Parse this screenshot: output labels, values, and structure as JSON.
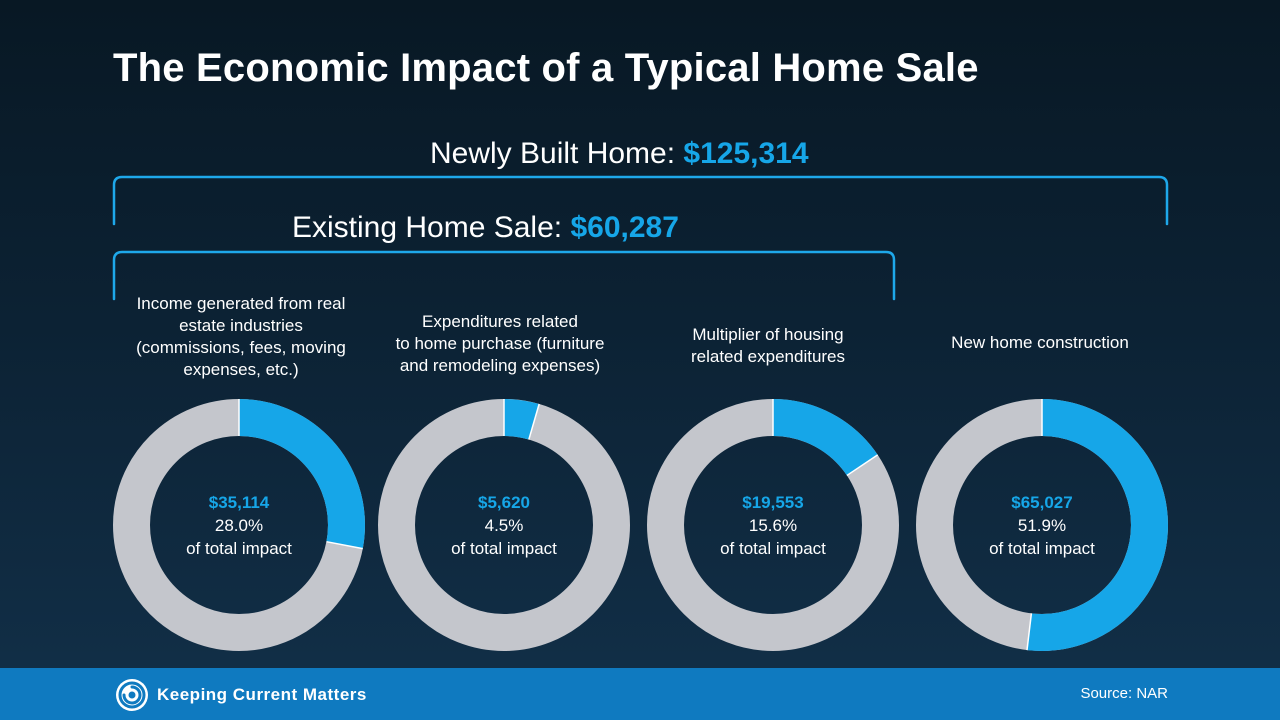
{
  "title": "The Economic Impact of a Typical Home Sale",
  "newly_built": {
    "label": "Newly Built Home: ",
    "amount": "$125,314"
  },
  "existing_sale": {
    "label": "Existing Home Sale: ",
    "amount": "$60,287"
  },
  "colors": {
    "accent": "#16a6e8",
    "ring_gray": "#c4c6cc",
    "footer": "#0f7ac0"
  },
  "chart_data": [
    {
      "type": "pie",
      "label_lines": [
        "Income generated from real",
        "estate industries",
        "(commissions, fees, moving",
        "expenses, etc.)"
      ],
      "value": "$35,114",
      "percent_text": "28.0%",
      "caption": "of total impact",
      "fraction": 0.28
    },
    {
      "type": "pie",
      "label_lines": [
        "Expenditures related",
        "to home purchase (furniture",
        "and remodeling expenses)"
      ],
      "value": "$5,620",
      "percent_text": "4.5%",
      "caption": "of total impact",
      "fraction": 0.045
    },
    {
      "type": "pie",
      "label_lines": [
        "Multiplier of housing",
        "related expenditures"
      ],
      "value": "$19,553",
      "percent_text": "15.6%",
      "caption": "of total impact",
      "fraction": 0.156
    },
    {
      "type": "pie",
      "label_lines": [
        "New home construction"
      ],
      "value": "$65,027",
      "percent_text": "51.9%",
      "caption": "of total impact",
      "fraction": 0.519
    }
  ],
  "footer": {
    "logo_text": "Keeping Current Matters",
    "logo_icon": "kcm-swirl-icon",
    "source": "Source: NAR"
  }
}
